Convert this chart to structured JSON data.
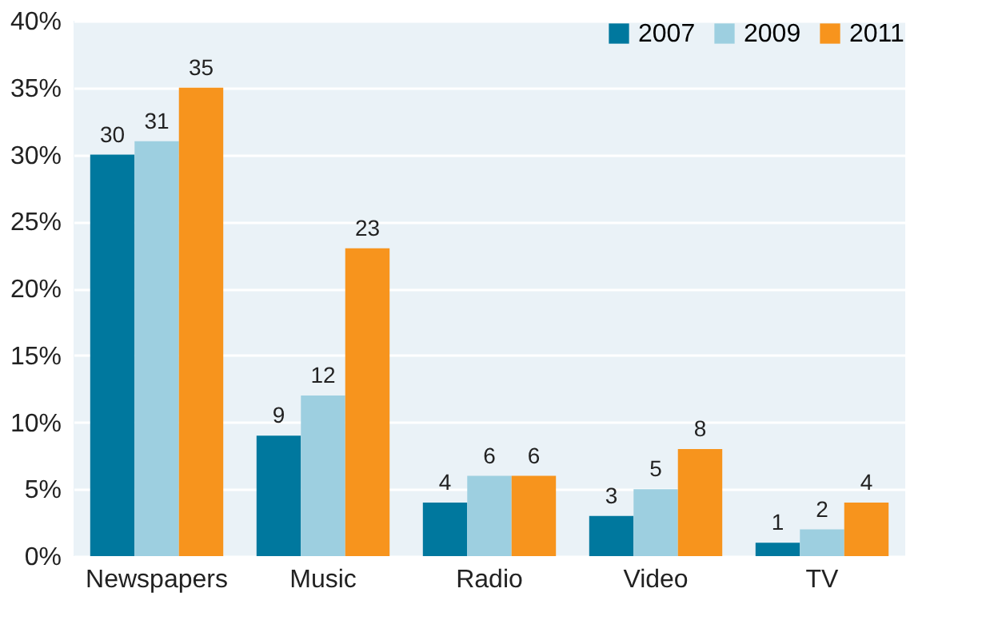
{
  "chart_data": {
    "type": "bar",
    "categories": [
      "Newspapers",
      "Music",
      "Radio",
      "Video",
      "TV"
    ],
    "series": [
      {
        "name": "2007",
        "color": "#00789e",
        "values": [
          30,
          9,
          4,
          3,
          1
        ]
      },
      {
        "name": "2009",
        "color": "#9dcfe0",
        "values": [
          31,
          12,
          6,
          5,
          2
        ]
      },
      {
        "name": "2011",
        "color": "#f7941d",
        "values": [
          35,
          23,
          6,
          8,
          4
        ]
      }
    ],
    "ylim": [
      0,
      40
    ],
    "yticks": [
      {
        "value": 0,
        "label": "0%"
      },
      {
        "value": 5,
        "label": "5%"
      },
      {
        "value": 10,
        "label": "10%"
      },
      {
        "value": 15,
        "label": "15%"
      },
      {
        "value": 20,
        "label": "20%"
      },
      {
        "value": 25,
        "label": "25%"
      },
      {
        "value": 30,
        "label": "30%"
      },
      {
        "value": 35,
        "label": "35%"
      },
      {
        "value": 40,
        "label": "40%"
      }
    ],
    "grid": "y",
    "legend": "top right",
    "data_labels": true
  }
}
